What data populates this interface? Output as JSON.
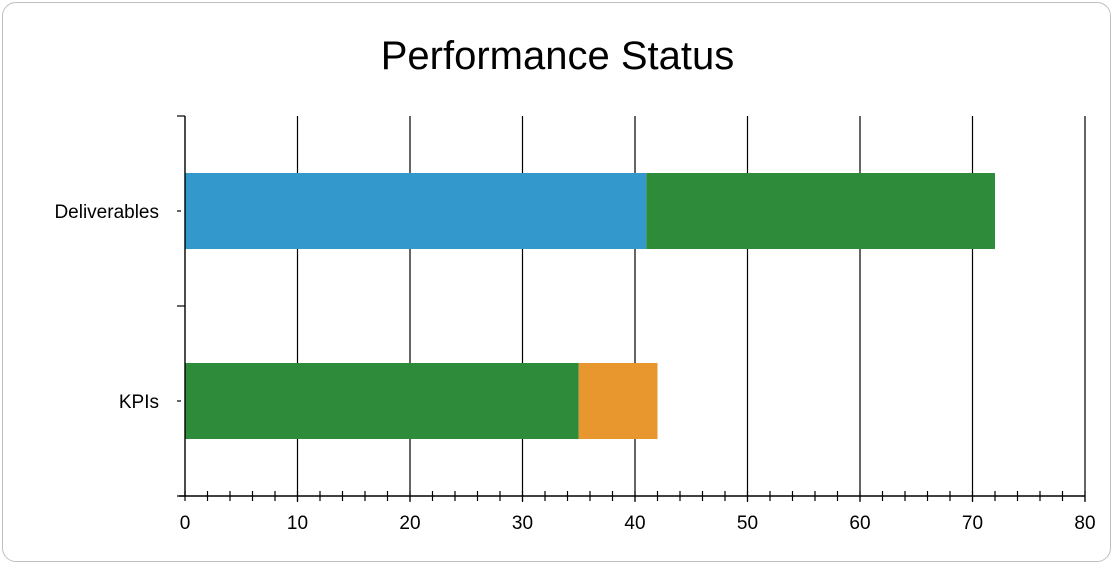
{
  "chart_data": {
    "type": "bar",
    "orientation": "horizontal",
    "stacked": true,
    "title": "Performance Status",
    "xlabel": "",
    "ylabel": "",
    "xlim": [
      0,
      80
    ],
    "x_ticks": [
      "0",
      "10",
      "20",
      "30",
      "40",
      "50",
      "60",
      "70",
      "80"
    ],
    "categories": [
      "Deliverables",
      "KPIs"
    ],
    "series": [
      {
        "color": "#3399cc",
        "values": [
          41,
          0
        ]
      },
      {
        "color": "#2e8b3a",
        "values": [
          31,
          35
        ]
      },
      {
        "color": "#e8962e",
        "values": [
          0,
          7
        ]
      }
    ],
    "grid": true,
    "legend": "none"
  }
}
